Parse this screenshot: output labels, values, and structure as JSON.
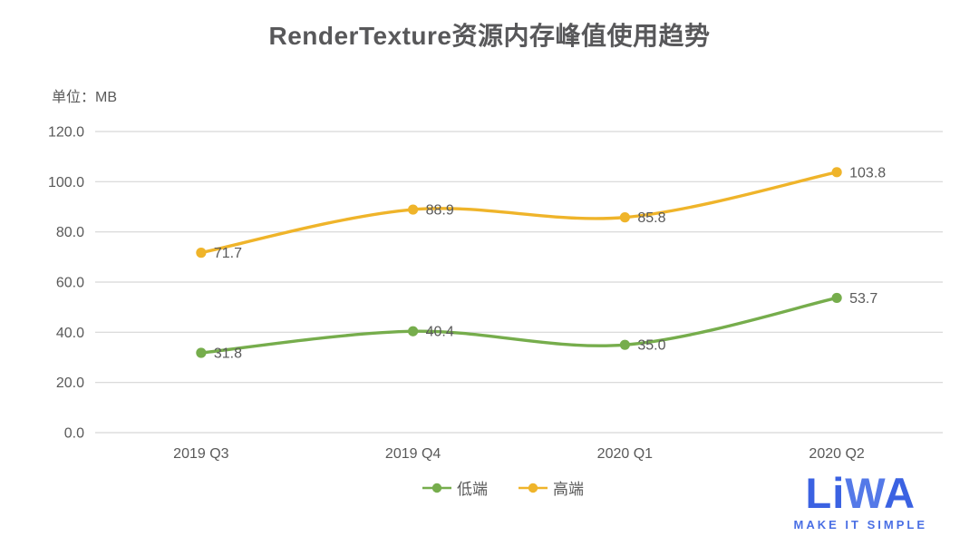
{
  "title": "RenderTexture资源内存峰值使用趋势",
  "unit_label": "单位：MB",
  "chart_data": {
    "type": "line",
    "categories": [
      "2019 Q3",
      "2019 Q4",
      "2020 Q1",
      "2020 Q2"
    ],
    "series": [
      {
        "name": "低端",
        "color": "#76ad4c",
        "values": [
          31.8,
          40.4,
          35.0,
          53.7
        ]
      },
      {
        "name": "高端",
        "color": "#efb42a",
        "values": [
          71.7,
          88.9,
          85.8,
          103.8
        ]
      }
    ],
    "ylabel": "单位：MB",
    "ylim": [
      0,
      120
    ],
    "ytick_step": 20,
    "ytick_labels": [
      "0.0",
      "20.0",
      "40.0",
      "60.0",
      "80.0",
      "100.0",
      "120.0"
    ],
    "grid": true,
    "grid_color": "#d6d6d6",
    "label_color": "#595959",
    "data_labels": true,
    "legend_position": "bottom",
    "smooth": true
  },
  "logo": {
    "text_part1": "Li",
    "text_part2": "W",
    "text_part3": "A",
    "tagline": "MAKE IT SIMPLE"
  }
}
